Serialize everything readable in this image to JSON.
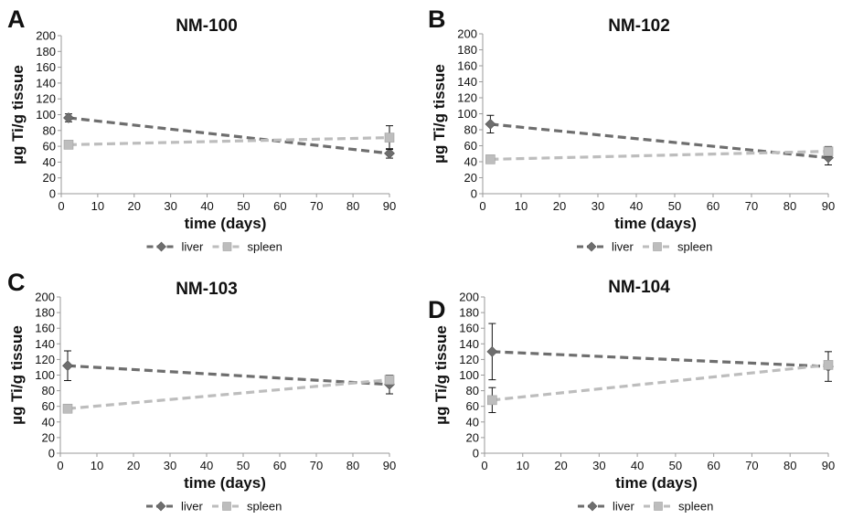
{
  "colors": {
    "liver": "#6e6e6e",
    "spleen": "#bdbdbd",
    "errorbar": "#111111"
  },
  "legend": {
    "liver": "liver",
    "spleen": "spleen"
  },
  "chart_data": [
    {
      "type": "line",
      "letter": "A",
      "title": "NM-100",
      "xlabel": "time (days)",
      "ylabel": "µg Ti/g tissue",
      "xlim": [
        0,
        90
      ],
      "ylim": [
        0,
        200
      ],
      "xticks": [
        "0",
        "10",
        "20",
        "30",
        "40",
        "50",
        "60",
        "70",
        "80",
        "90"
      ],
      "yticks": [
        "0",
        "20",
        "40",
        "60",
        "80",
        "100",
        "120",
        "140",
        "160",
        "180",
        "200"
      ],
      "grid": false,
      "legend_position": "bottom",
      "x": [
        2,
        90
      ],
      "series": [
        {
          "name": "liver",
          "marker": "diamond",
          "values": [
            96,
            51
          ],
          "error": [
            5,
            6
          ]
        },
        {
          "name": "spleen",
          "marker": "square",
          "values": [
            62,
            71
          ],
          "error": [
            3,
            15
          ]
        }
      ]
    },
    {
      "type": "line",
      "letter": "B",
      "title": "NM-102",
      "xlabel": "time (days)",
      "ylabel": "µg Ti/g tissue",
      "xlim": [
        0,
        90
      ],
      "ylim": [
        0,
        200
      ],
      "xticks": [
        "0",
        "10",
        "20",
        "30",
        "40",
        "50",
        "60",
        "70",
        "80",
        "90"
      ],
      "yticks": [
        "0",
        "20",
        "40",
        "60",
        "80",
        "100",
        "120",
        "140",
        "160",
        "180",
        "200"
      ],
      "grid": false,
      "legend_position": "bottom",
      "x": [
        2,
        90
      ],
      "series": [
        {
          "name": "liver",
          "marker": "diamond",
          "values": [
            87,
            45
          ],
          "error": [
            11,
            9
          ]
        },
        {
          "name": "spleen",
          "marker": "square",
          "values": [
            43,
            53
          ],
          "error": [
            3,
            6
          ]
        }
      ]
    },
    {
      "type": "line",
      "letter": "C",
      "title": "NM-103",
      "xlabel": "time (days)",
      "ylabel": "µg Ti/g tissue",
      "xlim": [
        0,
        90
      ],
      "ylim": [
        0,
        200
      ],
      "xticks": [
        "0",
        "10",
        "20",
        "30",
        "40",
        "50",
        "60",
        "70",
        "80",
        "90"
      ],
      "yticks": [
        "0",
        "20",
        "40",
        "60",
        "80",
        "100",
        "120",
        "140",
        "160",
        "180",
        "200"
      ],
      "grid": false,
      "legend_position": "bottom",
      "x": [
        2,
        90
      ],
      "series": [
        {
          "name": "liver",
          "marker": "diamond",
          "values": [
            112,
            88
          ],
          "error": [
            19,
            12
          ]
        },
        {
          "name": "spleen",
          "marker": "square",
          "values": [
            57,
            94
          ],
          "error": [
            3,
            5
          ]
        }
      ]
    },
    {
      "type": "line",
      "letter": "D",
      "title": "NM-104",
      "xlabel": "time (days)",
      "ylabel": "µg Ti/g tissue",
      "xlim": [
        0,
        90
      ],
      "ylim": [
        0,
        200
      ],
      "xticks": [
        "0",
        "10",
        "20",
        "30",
        "40",
        "50",
        "60",
        "70",
        "80",
        "90"
      ],
      "yticks": [
        "0",
        "20",
        "40",
        "60",
        "80",
        "100",
        "120",
        "140",
        "160",
        "180",
        "200"
      ],
      "grid": false,
      "legend_position": "bottom",
      "x": [
        2,
        90
      ],
      "series": [
        {
          "name": "liver",
          "marker": "diamond",
          "values": [
            130,
            111
          ],
          "error": [
            36,
            19
          ]
        },
        {
          "name": "spleen",
          "marker": "square",
          "values": [
            68,
            113
          ],
          "error": [
            16,
            5
          ]
        }
      ]
    }
  ]
}
